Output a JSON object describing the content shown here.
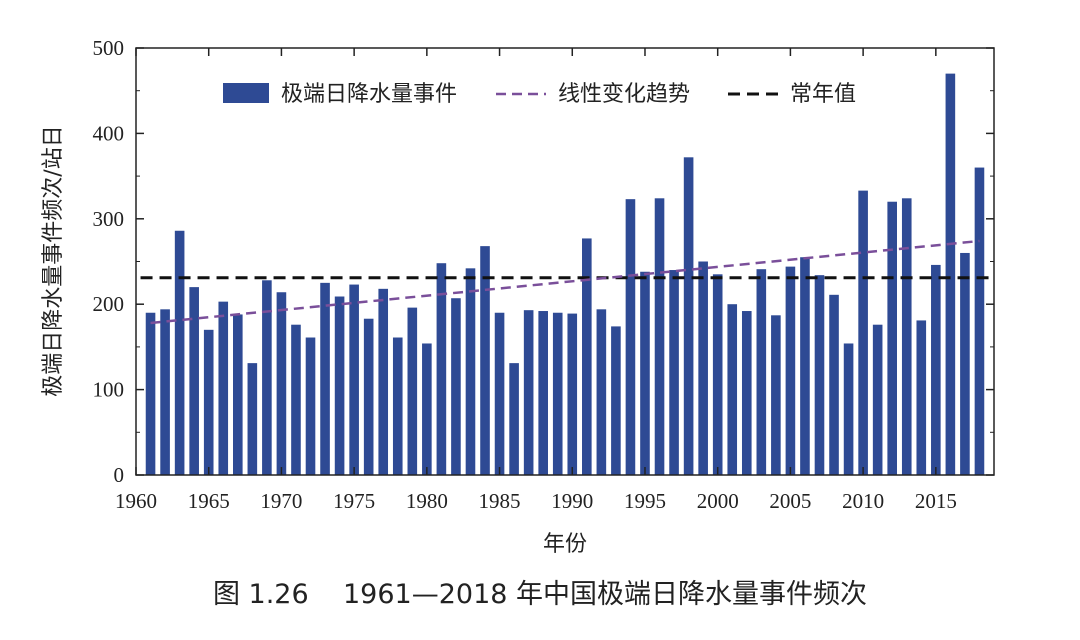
{
  "figure": {
    "caption": "图 1.26    1961—2018 年中国极端日降水量事件频次"
  },
  "chart_data": {
    "type": "bar",
    "title": "",
    "xlabel": "年份",
    "ylabel": "极端日降水量事件频次/站日",
    "xlim": [
      1960,
      2019
    ],
    "ylim": [
      0,
      500
    ],
    "x_ticks": [
      1960,
      1965,
      1970,
      1975,
      1980,
      1985,
      1990,
      1995,
      2000,
      2005,
      2010,
      2015
    ],
    "y_ticks": [
      0,
      100,
      200,
      300,
      400,
      500
    ],
    "grid": false,
    "legend_position": "top",
    "colors": {
      "bar": "#2e4a94",
      "trend": "#7a4f9a",
      "normal": "#111111"
    },
    "series": [
      {
        "name": "极端日降水量事件",
        "kind": "bar",
        "x": [
          1961,
          1962,
          1963,
          1964,
          1965,
          1966,
          1967,
          1968,
          1969,
          1970,
          1971,
          1972,
          1973,
          1974,
          1975,
          1976,
          1977,
          1978,
          1979,
          1980,
          1981,
          1982,
          1983,
          1984,
          1985,
          1986,
          1987,
          1988,
          1989,
          1990,
          1991,
          1992,
          1993,
          1994,
          1995,
          1996,
          1997,
          1998,
          1999,
          2000,
          2001,
          2002,
          2003,
          2004,
          2005,
          2006,
          2007,
          2008,
          2009,
          2010,
          2011,
          2012,
          2013,
          2014,
          2015,
          2016,
          2017,
          2018
        ],
        "values": [
          190,
          194,
          286,
          220,
          170,
          203,
          188,
          131,
          228,
          214,
          176,
          161,
          225,
          209,
          223,
          183,
          218,
          161,
          196,
          154,
          248,
          207,
          242,
          268,
          190,
          131,
          193,
          192,
          190,
          189,
          277,
          194,
          174,
          323,
          238,
          324,
          240,
          372,
          250,
          235,
          200,
          192,
          241,
          187,
          244,
          255,
          234,
          211,
          154,
          333,
          176,
          320,
          324,
          181,
          246,
          470,
          260,
          360
        ]
      },
      {
        "name": "线性变化趋势",
        "kind": "line",
        "style": "dashed",
        "x": [
          1961,
          2018
        ],
        "values": [
          178,
          274
        ]
      },
      {
        "name": "常年值",
        "kind": "hline",
        "style": "dashed",
        "x": [
          1961,
          2018
        ],
        "values": [
          231,
          231
        ]
      }
    ]
  }
}
